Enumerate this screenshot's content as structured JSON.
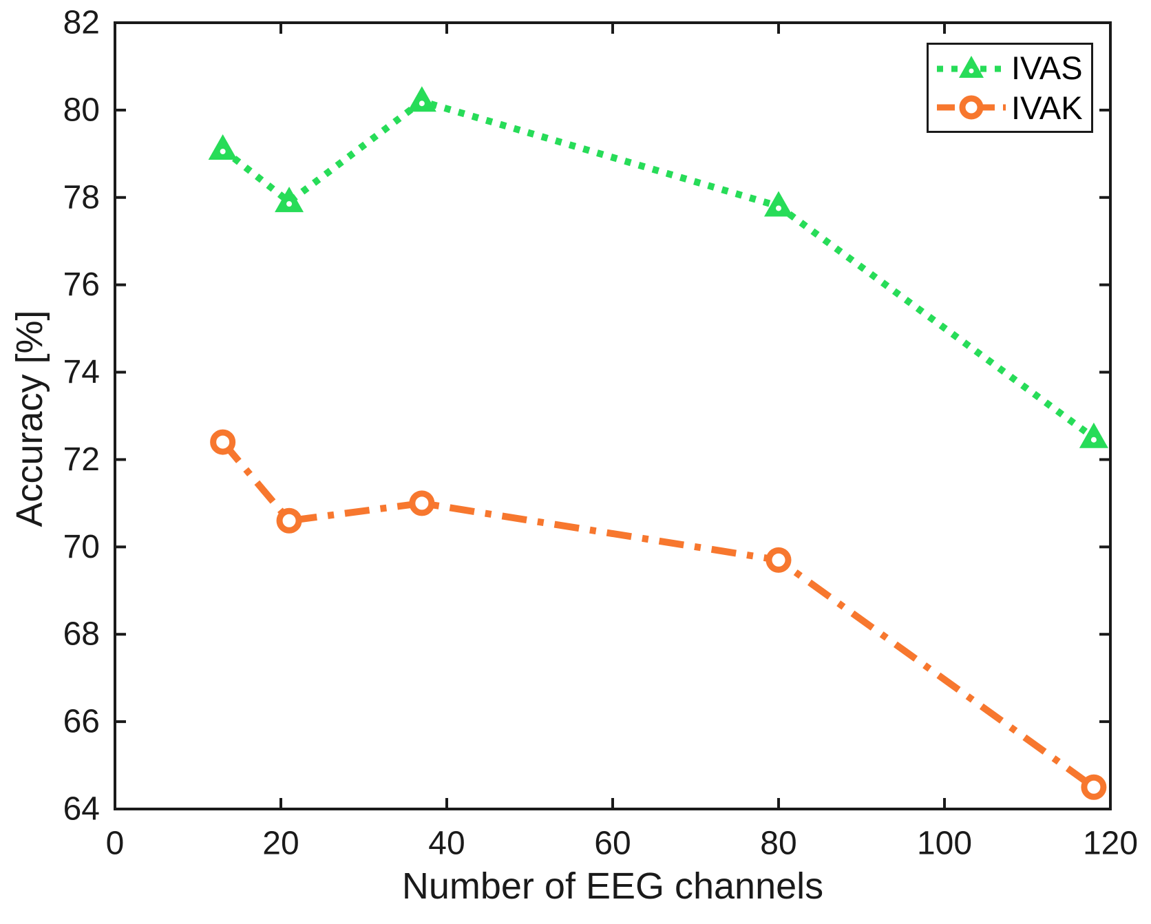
{
  "chart_data": {
    "type": "line",
    "title": "",
    "xlabel": "Number of EEG channels",
    "ylabel": "Accuracy [%]",
    "xlim": [
      0,
      120
    ],
    "ylim": [
      64,
      82
    ],
    "xticks": [
      0,
      20,
      40,
      60,
      80,
      100,
      120
    ],
    "yticks": [
      64,
      66,
      68,
      70,
      72,
      74,
      76,
      78,
      80,
      82
    ],
    "grid": false,
    "legend_position": "top-right",
    "x": [
      13,
      21,
      37,
      80,
      118
    ],
    "series": [
      {
        "name": "IVAS",
        "color": "#27dc58",
        "line_style": "dotted",
        "marker": "triangle-up",
        "values": [
          79.1,
          77.9,
          80.2,
          77.8,
          72.5
        ]
      },
      {
        "name": "IVAK",
        "color": "#f7772e",
        "line_style": "dash-dot",
        "marker": "circle",
        "values": [
          72.4,
          70.6,
          71.0,
          69.7,
          64.5
        ]
      }
    ],
    "axis_color": "#1a1a1a"
  }
}
